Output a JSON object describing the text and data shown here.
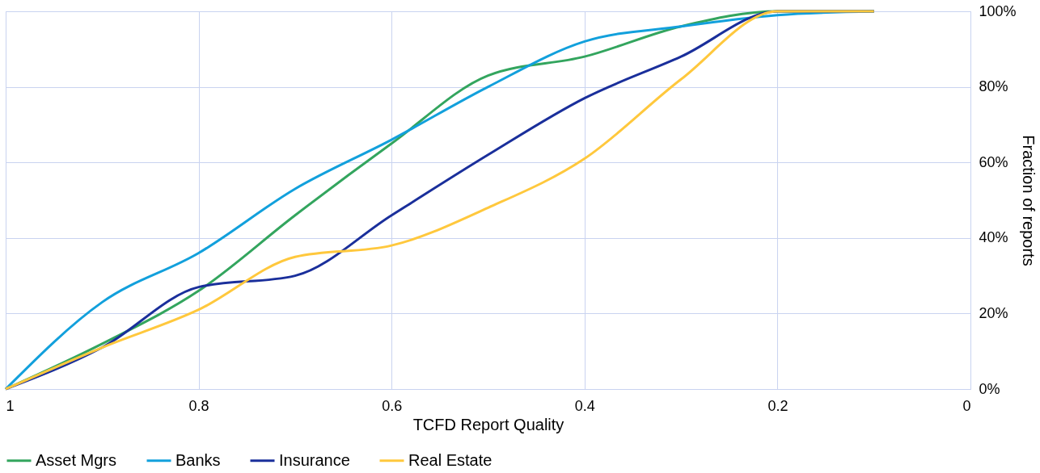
{
  "chart_data": {
    "type": "line",
    "xlabel": "TCFD Report Quality",
    "ylabel": "Fraction of reports",
    "x": [
      1,
      0.9,
      0.8,
      0.7,
      0.6,
      0.5,
      0.4,
      0.3,
      0.2,
      0.1
    ],
    "series": [
      {
        "name": "Asset Mgrs",
        "color": "#33a55e",
        "values": [
          0,
          12,
          26,
          46,
          65,
          83,
          88,
          96,
          100,
          100
        ]
      },
      {
        "name": "Banks",
        "color": "#12a0dc",
        "values": [
          0,
          23,
          36,
          53,
          66,
          80,
          92,
          96,
          99,
          100
        ]
      },
      {
        "name": "Insurance",
        "color": "#1a2f9b",
        "values": [
          0,
          11,
          27,
          30,
          46,
          62,
          77,
          88,
          100,
          100
        ]
      },
      {
        "name": "Real Estate",
        "color": "#ffc83d",
        "values": [
          0,
          11,
          21,
          35,
          38,
          48,
          61,
          82,
          100,
          100
        ]
      }
    ],
    "xlim": [
      1,
      0
    ],
    "xticks": [
      1,
      0.8,
      0.6,
      0.4,
      0.2,
      0
    ],
    "ylim": [
      0,
      100
    ],
    "yticks": [
      {
        "value": 0,
        "label": "0%"
      },
      {
        "value": 20,
        "label": "20%"
      },
      {
        "value": 40,
        "label": "40%"
      },
      {
        "value": 60,
        "label": "60%"
      },
      {
        "value": 80,
        "label": "80%"
      },
      {
        "value": 100,
        "label": "100%"
      }
    ],
    "grid": true,
    "legend": "bottom",
    "marker": "none",
    "line_style": "solid"
  }
}
